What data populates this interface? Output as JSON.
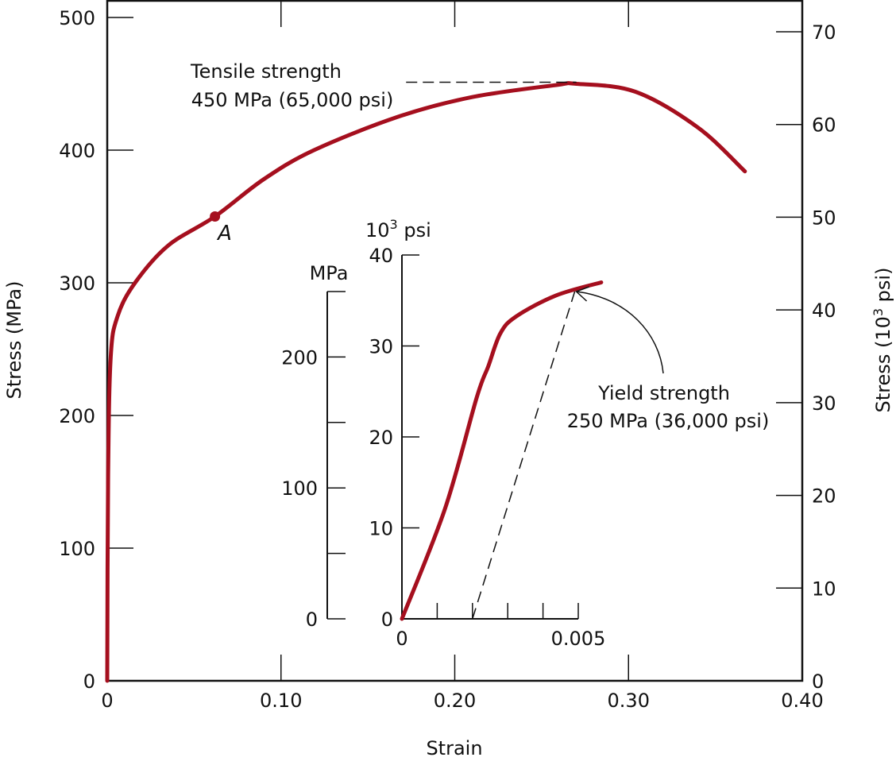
{
  "chart_data": {
    "type": "line",
    "colors": {
      "curve": "#a50f1e",
      "axes": "#111111"
    },
    "main": {
      "xlabel": "Strain",
      "ylabel_left": "Stress (MPa)",
      "ylabel_right": "Stress (10",
      "ylabel_right_sup": "3",
      "ylabel_right_tail": " psi)",
      "xlim": [
        0,
        0.4
      ],
      "ylim_left": [
        0,
        500
      ],
      "ylim_right": [
        0,
        70
      ],
      "x_ticks": [
        "0",
        "0.10",
        "0.20",
        "0.30",
        "0.40"
      ],
      "x_tick_values": [
        0,
        0.1,
        0.2,
        0.3,
        0.4
      ],
      "y_ticks_left": [
        "0",
        "100",
        "200",
        "300",
        "400",
        "500"
      ],
      "y_tick_values_left": [
        0,
        100,
        200,
        300,
        400,
        500
      ],
      "y_ticks_right": [
        "0",
        "10",
        "20",
        "30",
        "40",
        "50",
        "60",
        "70"
      ],
      "y_tick_values_right": [
        0,
        10,
        20,
        30,
        40,
        50,
        60,
        70
      ],
      "series": {
        "x": [
          0,
          0.0005,
          0.002,
          0.006,
          0.016,
          0.035,
          0.062,
          0.09,
          0.119,
          0.167,
          0.21,
          0.258,
          0.27,
          0.304,
          0.34,
          0.367
        ],
        "y": [
          0,
          154,
          244,
          275,
          300,
          328,
          350,
          378,
          400,
          425,
          440,
          449,
          450,
          444,
          417,
          384
        ]
      },
      "point_A": {
        "label": "A",
        "x": 0.062,
        "y": 350
      },
      "tensile_annotation": {
        "line1": "Tensile strength",
        "line2": "450 MPa (65,000 psi)",
        "value_mpa": 450,
        "dash_from_strain": 0.172,
        "dash_to_strain": 0.27
      }
    },
    "inset": {
      "label_mpa": "MPa",
      "label_psi": "10",
      "label_psi_sup": "3",
      "label_psi_tail": " psi",
      "xlim": [
        0,
        0.005
      ],
      "ylim_mpa": [
        0,
        250
      ],
      "ylim_ksi": [
        0,
        40
      ],
      "x_tick_labels": [
        "0",
        "0.005"
      ],
      "x_tick_values": [
        0,
        0.001,
        0.002,
        0.003,
        0.004,
        0.005
      ],
      "y_ticks_mpa": [
        "0",
        "100",
        "200"
      ],
      "y_tick_values_mpa": [
        0,
        50,
        100,
        150,
        200,
        250
      ],
      "y_ticks_ksi": [
        "0",
        "10",
        "20",
        "30",
        "40"
      ],
      "y_tick_values_ksi": [
        0,
        10,
        20,
        30,
        40
      ],
      "series": {
        "x": [
          0,
          0.00122,
          0.00212,
          0.00245,
          0.00279,
          0.00324,
          0.00437,
          0.00565
        ],
        "y": [
          0,
          84,
          169,
          193,
          218,
          231,
          247,
          257
        ]
      },
      "offset_line": {
        "x": [
          0.002,
          0.0049
        ],
        "y": [
          0,
          250
        ]
      },
      "yield_annotation": {
        "line1": "Yield strength",
        "line2": "250 MPa (36,000 psi)",
        "value_mpa": 250
      }
    }
  }
}
